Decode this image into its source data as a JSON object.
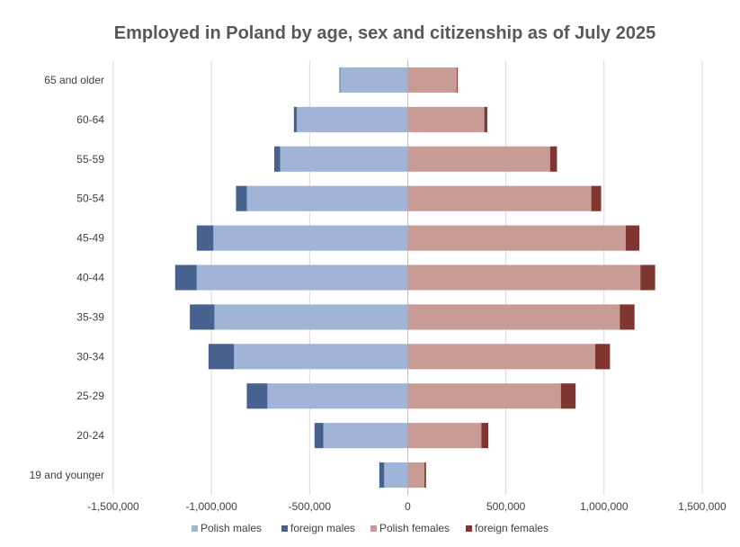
{
  "chart_data": {
    "type": "bar",
    "orientation": "horizontal",
    "stacked": true,
    "title": "Employed in Poland by age, sex and citizenship as of July 2025",
    "categories": [
      "65 and older",
      "60-64",
      "55-59",
      "50-54",
      "45-49",
      "40-44",
      "35-39",
      "30-34",
      "25-29",
      "20-24",
      "19 and younger"
    ],
    "series": [
      {
        "name": "Polish males",
        "color": "#9fb4d6",
        "values": [
          -344000,
          -565000,
          -650000,
          -820000,
          -990000,
          -1075000,
          -985000,
          -885000,
          -715000,
          -430000,
          -120000
        ]
      },
      {
        "name": "foreign males",
        "color": "#47628f",
        "values": [
          -4000,
          -15000,
          -30000,
          -55000,
          -85000,
          -110000,
          -125000,
          -130000,
          -105000,
          -45000,
          -25000
        ]
      },
      {
        "name": "Polish females",
        "color": "#c99b95",
        "values": [
          250000,
          390000,
          725000,
          935000,
          1110000,
          1185000,
          1080000,
          955000,
          780000,
          375000,
          85000
        ]
      },
      {
        "name": "foreign females",
        "color": "#7f3530",
        "values": [
          5000,
          15000,
          35000,
          50000,
          70000,
          75000,
          75000,
          75000,
          75000,
          35000,
          8000
        ]
      }
    ],
    "xlim": [
      -1500000,
      1500000
    ],
    "xticks": [
      -1500000,
      -1000000,
      -500000,
      0,
      500000,
      1000000,
      1500000
    ],
    "xtick_labels": [
      "-1,500,000",
      "-1,000,000",
      "-500,000",
      "0",
      "500,000",
      "1,000,000",
      "1,500,000"
    ],
    "xlabel": "",
    "ylabel": "",
    "grid": "vertical",
    "legend_position": "bottom"
  }
}
